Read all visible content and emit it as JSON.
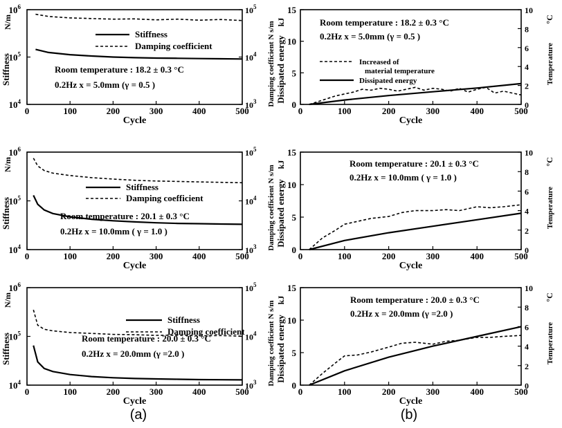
{
  "captions": {
    "a": "(a)",
    "b": "(b)"
  },
  "chart_data": [
    {
      "type": "line",
      "panel": "a1",
      "xlabel": "Cycle",
      "xlim": [
        0,
        500
      ],
      "xticks": [
        "0",
        "100",
        "200",
        "300",
        "400",
        "500"
      ],
      "ylabel": "Stiffness",
      "yunit": "N/m",
      "yscale": "log",
      "ylim": [
        10000,
        1000000
      ],
      "yticks": [
        {
          "base": "10",
          "exp": "4"
        },
        {
          "base": "10",
          "exp": "5"
        },
        {
          "base": "10",
          "exp": "6"
        }
      ],
      "y2label": "Damping coefficient",
      "y2unit": "N s/m",
      "y2scale": "log",
      "y2lim": [
        1000,
        100000
      ],
      "y2ticks": [
        {
          "base": "10",
          "exp": "3"
        },
        {
          "base": "10",
          "exp": "4"
        },
        {
          "base": "10",
          "exp": "5"
        }
      ],
      "legend": [
        {
          "name": "Stiffness",
          "style": "solid"
        },
        {
          "name": "Damping coefficient",
          "style": "dashed"
        }
      ],
      "annotations": [
        "Room temperature : 18.2 ± 0.3 °C",
        "0.2Hz   x = 5.0mm (γ = 0.5 )"
      ],
      "series": [
        {
          "name": "Stiffness",
          "axis": "left",
          "style": "solid",
          "x": [
            20,
            50,
            100,
            150,
            200,
            250,
            300,
            350,
            400,
            450,
            500
          ],
          "y": [
            145000,
            125000,
            112000,
            105000,
            100000,
            97000,
            95000,
            94000,
            93000,
            92000,
            91000
          ]
        },
        {
          "name": "Damping coefficient",
          "axis": "right",
          "style": "dashed",
          "x": [
            20,
            50,
            100,
            150,
            200,
            250,
            300,
            350,
            400,
            450,
            500
          ],
          "y": [
            80000,
            72000,
            67000,
            65000,
            63000,
            64000,
            61000,
            63000,
            60000,
            62000,
            59000
          ]
        }
      ]
    },
    {
      "type": "line",
      "panel": "a2",
      "xlabel": "Cycle",
      "xlim": [
        0,
        500
      ],
      "xticks": [
        "0",
        "100",
        "200",
        "300",
        "400",
        "500"
      ],
      "ylabel": "Stiffness",
      "yunit": "N/m",
      "yscale": "log",
      "ylim": [
        10000,
        1000000
      ],
      "yticks": [
        {
          "base": "10",
          "exp": "4"
        },
        {
          "base": "10",
          "exp": "5"
        },
        {
          "base": "10",
          "exp": "6"
        }
      ],
      "y2label": "Damping coefficient",
      "y2unit": "N s/m",
      "y2scale": "log",
      "y2lim": [
        1000,
        100000
      ],
      "y2ticks": [
        {
          "base": "10",
          "exp": "3"
        },
        {
          "base": "10",
          "exp": "4"
        },
        {
          "base": "10",
          "exp": "5"
        }
      ],
      "legend": [
        {
          "name": "Stiffness",
          "style": "solid"
        },
        {
          "name": "Damping coefficient",
          "style": "dashed"
        }
      ],
      "annotations": [
        "Room temperature : 20.1 ±     0.3 °C",
        "0.2Hz   x = 10.0mm ( γ = 1.0 )"
      ],
      "series": [
        {
          "name": "Stiffness",
          "axis": "left",
          "style": "solid",
          "x": [
            15,
            25,
            40,
            60,
            100,
            150,
            200,
            250,
            300,
            350,
            400,
            450,
            500
          ],
          "y": [
            130000,
            85000,
            65000,
            55000,
            47000,
            42000,
            39000,
            37000,
            35500,
            34500,
            34000,
            33500,
            33000
          ]
        },
        {
          "name": "Damping coefficient",
          "axis": "right",
          "style": "dashed",
          "x": [
            15,
            25,
            40,
            60,
            100,
            150,
            200,
            250,
            300,
            350,
            400,
            450,
            500
          ],
          "y": [
            75000,
            52000,
            42000,
            37000,
            33000,
            30000,
            28000,
            26500,
            25500,
            25000,
            24500,
            24000,
            23500
          ]
        }
      ]
    },
    {
      "type": "line",
      "panel": "a3",
      "xlabel": "Cycle",
      "xlim": [
        0,
        500
      ],
      "xticks": [
        "0",
        "100",
        "200",
        "300",
        "400",
        "500"
      ],
      "ylabel": "Stiffness",
      "yunit": "N/m",
      "yscale": "log",
      "ylim": [
        10000,
        1000000
      ],
      "yticks": [
        {
          "base": "10",
          "exp": "4"
        },
        {
          "base": "10",
          "exp": "5"
        },
        {
          "base": "10",
          "exp": "6"
        }
      ],
      "y2label": "Damping coefficient",
      "y2unit": "N s/m",
      "y2scale": "log",
      "y2lim": [
        1000,
        100000
      ],
      "y2ticks": [
        {
          "base": "10",
          "exp": "3"
        },
        {
          "base": "10",
          "exp": "4"
        },
        {
          "base": "10",
          "exp": "5"
        }
      ],
      "legend": [
        {
          "name": "Stiffness",
          "style": "solid"
        },
        {
          "name": "Damping coefficient",
          "style": "dashed"
        }
      ],
      "annotations": [
        "Room temperature : 20.0 ± 0.3 °C",
        "0.2Hz   x = 20.0mm (γ =2.0 )"
      ],
      "series": [
        {
          "name": "Stiffness",
          "axis": "left",
          "style": "solid",
          "x": [
            15,
            25,
            40,
            60,
            100,
            150,
            200,
            250,
            300,
            350,
            400,
            450,
            500
          ],
          "y": [
            65000,
            30000,
            22000,
            19000,
            16500,
            15000,
            14200,
            13700,
            13400,
            13200,
            13000,
            12900,
            12800
          ]
        },
        {
          "name": "Damping coefficient",
          "axis": "right",
          "style": "dashed",
          "x": [
            15,
            25,
            40,
            60,
            100,
            150,
            200,
            250,
            300,
            350,
            400,
            450,
            500
          ],
          "y": [
            35000,
            17000,
            14000,
            13000,
            12000,
            11500,
            11000,
            10800,
            10500,
            10600,
            10300,
            10400,
            10100
          ]
        }
      ]
    },
    {
      "type": "line",
      "panel": "b1",
      "xlabel": "Cycle",
      "xlim": [
        0,
        500
      ],
      "xticks": [
        "0",
        "100",
        "200",
        "300",
        "400",
        "500"
      ],
      "ylabel": "Dissipated   energy",
      "yunit": "kJ",
      "ylim": [
        0,
        15
      ],
      "yticks": [
        "0",
        "5",
        "10",
        "15"
      ],
      "y2label": "Temperature",
      "y2unit": "°C",
      "y2lim": [
        0,
        10
      ],
      "y2ticks": [
        "0",
        "2",
        "4",
        "6",
        "8",
        "10"
      ],
      "legend": [
        {
          "name": "Increased of",
          "name2": "material temperature",
          "style": "dashed"
        },
        {
          "name": "Dissipated energy",
          "style": "solid"
        }
      ],
      "annotations": [
        "Room temperature : 18.2 ± 0.3 °C",
        "0.2Hz   x = 5.0mm (γ = 0.5 )"
      ],
      "series": [
        {
          "name": "Dissipated energy",
          "axis": "left",
          "style": "solid",
          "x": [
            20,
            100,
            200,
            300,
            400,
            500
          ],
          "y": [
            0.0,
            0.7,
            1.4,
            2.0,
            2.6,
            3.3
          ]
        },
        {
          "name": "Increased of material temperature",
          "axis": "right",
          "style": "dashed",
          "x": [
            20,
            40,
            60,
            80,
            100,
            120,
            140,
            160,
            180,
            200,
            220,
            240,
            260,
            280,
            300,
            320,
            340,
            360,
            380,
            400,
            420,
            440,
            460,
            480,
            500
          ],
          "y": [
            0.0,
            0.3,
            0.6,
            0.9,
            1.1,
            1.3,
            1.6,
            1.5,
            1.7,
            1.6,
            1.4,
            1.6,
            1.8,
            1.5,
            1.7,
            1.6,
            1.4,
            1.7,
            1.3,
            1.6,
            1.8,
            1.2,
            1.4,
            1.2,
            1.0
          ]
        }
      ]
    },
    {
      "type": "line",
      "panel": "b2",
      "xlabel": "Cycle",
      "xlim": [
        0,
        500
      ],
      "xticks": [
        "0",
        "100",
        "200",
        "300",
        "400",
        "500"
      ],
      "ylabel": "Dissipated   energy",
      "yunit": "kJ",
      "ylim": [
        0,
        15
      ],
      "yticks": [
        "0",
        "5",
        "10",
        "15"
      ],
      "y2label": "Temperature",
      "y2unit": "°C",
      "y2lim": [
        0,
        10
      ],
      "y2ticks": [
        "0",
        "2",
        "4",
        "6",
        "8",
        "10"
      ],
      "legend": [],
      "annotations": [
        "Room temperature : 20.1 ±     0.3 °C",
        "0.2Hz   x = 10.0mm ( γ = 1.0 )"
      ],
      "series": [
        {
          "name": "Dissipated energy",
          "axis": "left",
          "style": "solid",
          "x": [
            20,
            100,
            200,
            300,
            400,
            500
          ],
          "y": [
            0.0,
            1.4,
            2.6,
            3.6,
            4.6,
            5.6
          ]
        },
        {
          "name": "Increased of material temperature",
          "axis": "right",
          "style": "dashed",
          "x": [
            20,
            50,
            80,
            100,
            130,
            160,
            200,
            230,
            260,
            300,
            330,
            360,
            400,
            430,
            460,
            500
          ],
          "y": [
            0.0,
            1.2,
            2.0,
            2.6,
            2.9,
            3.2,
            3.4,
            3.8,
            4.0,
            4.0,
            4.1,
            4.0,
            4.4,
            4.3,
            4.4,
            4.6
          ]
        }
      ]
    },
    {
      "type": "line",
      "panel": "b3",
      "xlabel": "Cycle",
      "xlim": [
        0,
        500
      ],
      "xticks": [
        "0",
        "100",
        "200",
        "300",
        "400",
        "500"
      ],
      "ylabel": "Dissipated   energy",
      "yunit": "kJ",
      "ylim": [
        0,
        15
      ],
      "yticks": [
        "0",
        "5",
        "10",
        "15"
      ],
      "y2label": "Temperature",
      "y2unit": "°C",
      "y2lim": [
        0,
        10
      ],
      "y2ticks": [
        "0",
        "2",
        "4",
        "6",
        "8",
        "10"
      ],
      "legend": [],
      "annotations": [
        "Room temperature : 20.0 ± 0.3 °C",
        "0.2Hz   x = 20.0mm (γ =2.0 )"
      ],
      "series": [
        {
          "name": "Dissipated energy",
          "axis": "left",
          "style": "solid",
          "x": [
            20,
            100,
            200,
            300,
            400,
            500
          ],
          "y": [
            0.0,
            2.2,
            4.3,
            6.0,
            7.5,
            9.0
          ]
        },
        {
          "name": "Increased of material temperature",
          "axis": "right",
          "style": "dashed",
          "x": [
            20,
            50,
            80,
            100,
            130,
            160,
            200,
            230,
            260,
            300,
            330,
            360,
            400,
            430,
            460,
            500
          ],
          "y": [
            0.0,
            1.2,
            2.3,
            3.0,
            3.1,
            3.4,
            3.9,
            4.3,
            4.4,
            4.2,
            4.5,
            4.6,
            4.9,
            4.9,
            5.0,
            5.1
          ]
        }
      ]
    }
  ]
}
